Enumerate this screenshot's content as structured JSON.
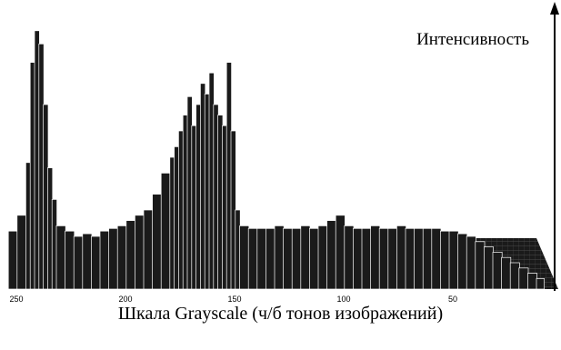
{
  "chart_data": {
    "type": "area",
    "title": "",
    "ylabel": "Интенсивность",
    "xlabel": "Шкала Grayscale (ч/б тонов изображений)",
    "x_reversed": true,
    "xlim": [
      250,
      0
    ],
    "x_ticks": [
      250,
      200,
      150,
      100,
      50,
      0
    ],
    "x_tick_labels": [
      "250",
      "200",
      "150",
      "100",
      "50",
      ""
    ],
    "ylim": [
      0,
      1
    ],
    "grid": false,
    "legend": "none",
    "colors": {
      "fill": "#1a1a1a",
      "stroke": "#ffffff",
      "axis": "#000000"
    },
    "x": [
      252,
      248,
      244,
      242,
      240,
      238,
      236,
      234,
      232,
      230,
      226,
      222,
      218,
      214,
      210,
      206,
      202,
      198,
      194,
      190,
      186,
      182,
      178,
      176,
      174,
      172,
      170,
      168,
      166,
      164,
      162,
      160,
      158,
      156,
      154,
      152,
      150,
      148,
      146,
      142,
      138,
      134,
      130,
      126,
      122,
      118,
      114,
      110,
      106,
      102,
      98,
      94,
      90,
      86,
      82,
      78,
      74,
      70,
      66,
      62,
      58,
      54,
      50,
      46,
      42,
      38,
      34,
      30,
      26,
      22,
      18,
      14,
      10
    ],
    "values": [
      0.22,
      0.28,
      0.48,
      0.86,
      0.98,
      0.93,
      0.7,
      0.46,
      0.34,
      0.24,
      0.22,
      0.2,
      0.21,
      0.2,
      0.22,
      0.23,
      0.24,
      0.26,
      0.28,
      0.3,
      0.36,
      0.44,
      0.5,
      0.54,
      0.6,
      0.66,
      0.73,
      0.62,
      0.7,
      0.78,
      0.74,
      0.82,
      0.7,
      0.66,
      0.62,
      0.86,
      0.6,
      0.3,
      0.24,
      0.23,
      0.23,
      0.23,
      0.24,
      0.23,
      0.23,
      0.24,
      0.23,
      0.24,
      0.26,
      0.28,
      0.24,
      0.23,
      0.23,
      0.24,
      0.23,
      0.23,
      0.24,
      0.23,
      0.23,
      0.23,
      0.23,
      0.22,
      0.22,
      0.21,
      0.2,
      0.18,
      0.16,
      0.14,
      0.12,
      0.1,
      0.08,
      0.06,
      0.04
    ]
  }
}
